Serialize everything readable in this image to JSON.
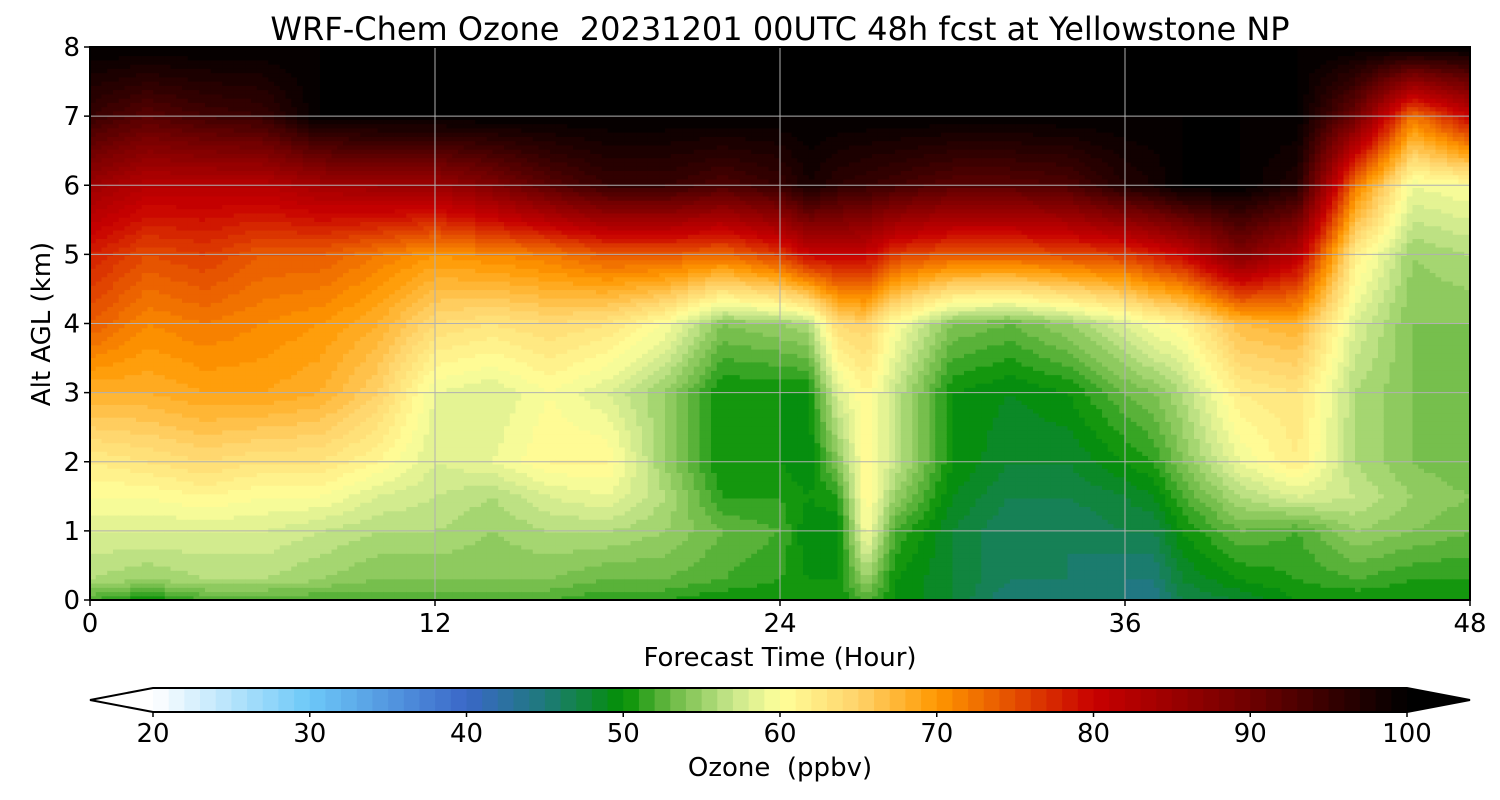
{
  "chart_data": {
    "type": "heatmap",
    "subtype": "filled-contour time-height cross section",
    "title": "WRF-Chem Ozone  20231201 00UTC 48h fcst at Yellowstone NP",
    "xlabel": "Forecast Time (Hour)",
    "ylabel": "Alt AGL (km)",
    "xlim": [
      0,
      48
    ],
    "ylim": [
      0,
      8
    ],
    "x_ticks": [
      0,
      12,
      24,
      36,
      48
    ],
    "y_ticks": [
      0,
      1,
      2,
      3,
      4,
      5,
      6,
      7,
      8
    ],
    "grid": true,
    "colorbar": {
      "label": "Ozone  (ppbv)",
      "min": 20,
      "max": 100,
      "step": 1,
      "ticks": [
        20,
        30,
        40,
        50,
        60,
        70,
        80,
        90,
        100
      ],
      "extend": "both",
      "under_color": "#ffffff",
      "over_color": "#000000",
      "stops": [
        {
          "v": 20,
          "c": "#ffffff"
        },
        {
          "v": 30,
          "c": "#6cc8f8"
        },
        {
          "v": 40,
          "c": "#3a67c8"
        },
        {
          "v": 45,
          "c": "#1e7a7a"
        },
        {
          "v": 50,
          "c": "#039003"
        },
        {
          "v": 53,
          "c": "#6ab944"
        },
        {
          "v": 57,
          "c": "#c9e78c"
        },
        {
          "v": 60,
          "c": "#ffff9a"
        },
        {
          "v": 65,
          "c": "#ffd36a"
        },
        {
          "v": 70,
          "c": "#ff9800"
        },
        {
          "v": 80,
          "c": "#c80000"
        },
        {
          "v": 90,
          "c": "#6e0000"
        },
        {
          "v": 100,
          "c": "#000000"
        }
      ]
    },
    "times": [
      0,
      2,
      4,
      6,
      8,
      10,
      12,
      14,
      16,
      18,
      20,
      22,
      24,
      25,
      26,
      27,
      28,
      30,
      32,
      34,
      36,
      37,
      38,
      40,
      42,
      44,
      46,
      48
    ],
    "profile_levels_km": [
      0,
      0.3,
      1,
      1.5,
      2,
      3,
      4,
      5,
      6,
      7,
      8
    ],
    "profiles_ppbv": [
      [
        52,
        56,
        58,
        60,
        62,
        68,
        74,
        78,
        85,
        95,
        100
      ],
      [
        50,
        55,
        58,
        60,
        63,
        68,
        71,
        75,
        82,
        92,
        100
      ],
      [
        52,
        56,
        58,
        61,
        64,
        69,
        72,
        76,
        82,
        94,
        100
      ],
      [
        52,
        56,
        58,
        60,
        63,
        69,
        71,
        74,
        82,
        95,
        100
      ],
      [
        52,
        55,
        57,
        60,
        63,
        68,
        70,
        74,
        84,
        100,
        100
      ],
      [
        52,
        54,
        56,
        58,
        61,
        65,
        68,
        72,
        85,
        100,
        100
      ],
      [
        52,
        54,
        56,
        57,
        58,
        59,
        64,
        70,
        85,
        100,
        100
      ],
      [
        52,
        54,
        55,
        56,
        59,
        58,
        63,
        71,
        88,
        100,
        100
      ],
      [
        52,
        54,
        56,
        58,
        61,
        60,
        64,
        72,
        92,
        100,
        100
      ],
      [
        51,
        53,
        56,
        59,
        61,
        58,
        63,
        74,
        95,
        100,
        100
      ],
      [
        51,
        53,
        55,
        56,
        55,
        55,
        60,
        74,
        95,
        100,
        100
      ],
      [
        50,
        52,
        53,
        51,
        50,
        50,
        54,
        73,
        93,
        100,
        100
      ],
      [
        50,
        51,
        52,
        51,
        50,
        50,
        55,
        76,
        95,
        100,
        100
      ],
      [
        50,
        50,
        49,
        50,
        49,
        50,
        56,
        80,
        98,
        100,
        100
      ],
      [
        50,
        50,
        49,
        51,
        54,
        58,
        64,
        80,
        96,
        100,
        100
      ],
      [
        52,
        55,
        60,
        61,
        61,
        61,
        65,
        80,
        95,
        100,
        100
      ],
      [
        50,
        50,
        52,
        55,
        57,
        57,
        60,
        76,
        94,
        100,
        100
      ],
      [
        48,
        48,
        48,
        49,
        50,
        50,
        54,
        74,
        92,
        100,
        100
      ],
      [
        45,
        46,
        46,
        47,
        48,
        49,
        53,
        74,
        92,
        100,
        100
      ],
      [
        45,
        46,
        46,
        47,
        48,
        50,
        55,
        75,
        93,
        100,
        100
      ],
      [
        45,
        45,
        47,
        48,
        50,
        53,
        58,
        76,
        97,
        100,
        100
      ],
      [
        44,
        45,
        47,
        49,
        51,
        54,
        60,
        78,
        98,
        100,
        100
      ],
      [
        47,
        48,
        50,
        52,
        54,
        56,
        61,
        80,
        100,
        100,
        100
      ],
      [
        48,
        50,
        53,
        56,
        59,
        62,
        67,
        88,
        100,
        100,
        100
      ],
      [
        50,
        51,
        52,
        58,
        62,
        63,
        68,
        82,
        97,
        100,
        100
      ],
      [
        50,
        52,
        55,
        57,
        56,
        56,
        58,
        62,
        72,
        90,
        100
      ],
      [
        50,
        51,
        54,
        55,
        54,
        54,
        54,
        55,
        59,
        72,
        100
      ],
      [
        50,
        51,
        53,
        54,
        53,
        53,
        54,
        56,
        60,
        80,
        100
      ]
    ]
  }
}
